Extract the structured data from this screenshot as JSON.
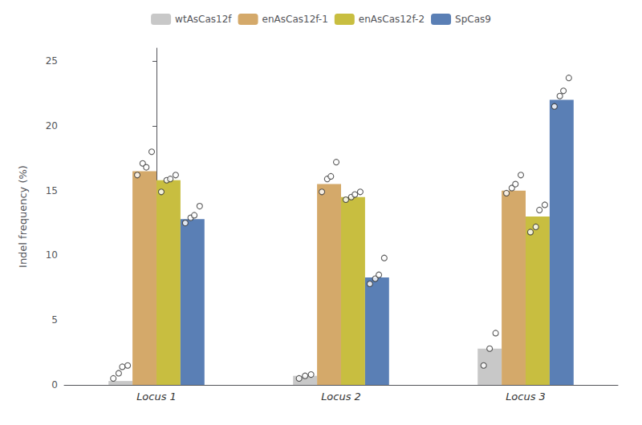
{
  "chart_data": {
    "type": "bar",
    "categories": [
      "Locus 1",
      "Locus 2",
      "Locus 3"
    ],
    "series": [
      {
        "name": "wtAsCas12f",
        "color": "#c8c8c8",
        "values": [
          0.3,
          0.7,
          2.8
        ],
        "points": [
          [
            0.5,
            0.9,
            1.4,
            1.5
          ],
          [
            0.5,
            0.7,
            0.8
          ],
          [
            1.5,
            2.8,
            4.0
          ]
        ]
      },
      {
        "name": "enAsCas12f-1",
        "color": "#d4a96a",
        "values": [
          16.5,
          15.5,
          15.0
        ],
        "points": [
          [
            16.2,
            17.1,
            16.8,
            18.0
          ],
          [
            14.9,
            15.9,
            16.1,
            17.2
          ],
          [
            14.8,
            15.2,
            15.5,
            16.2
          ]
        ]
      },
      {
        "name": "enAsCas12f-2",
        "color": "#c8be40",
        "values": [
          15.8,
          14.5,
          13.0
        ],
        "points": [
          [
            14.9,
            15.8,
            15.9,
            16.2
          ],
          [
            14.3,
            14.5,
            14.7,
            14.9
          ],
          [
            11.8,
            12.2,
            13.5,
            13.9
          ]
        ]
      },
      {
        "name": "SpCas9",
        "color": "#5a7fb5",
        "values": [
          12.8,
          8.3,
          22.0
        ],
        "points": [
          [
            12.5,
            12.9,
            13.1,
            13.8
          ],
          [
            7.8,
            8.2,
            8.5,
            9.8
          ],
          [
            21.5,
            22.3,
            22.7,
            23.7
          ]
        ]
      }
    ],
    "ylabel": "Indel frequency (%)",
    "ylim": [
      0,
      26
    ],
    "yticks": [
      0,
      5,
      10,
      15,
      20,
      25
    ],
    "grid": false,
    "legend": "top"
  }
}
